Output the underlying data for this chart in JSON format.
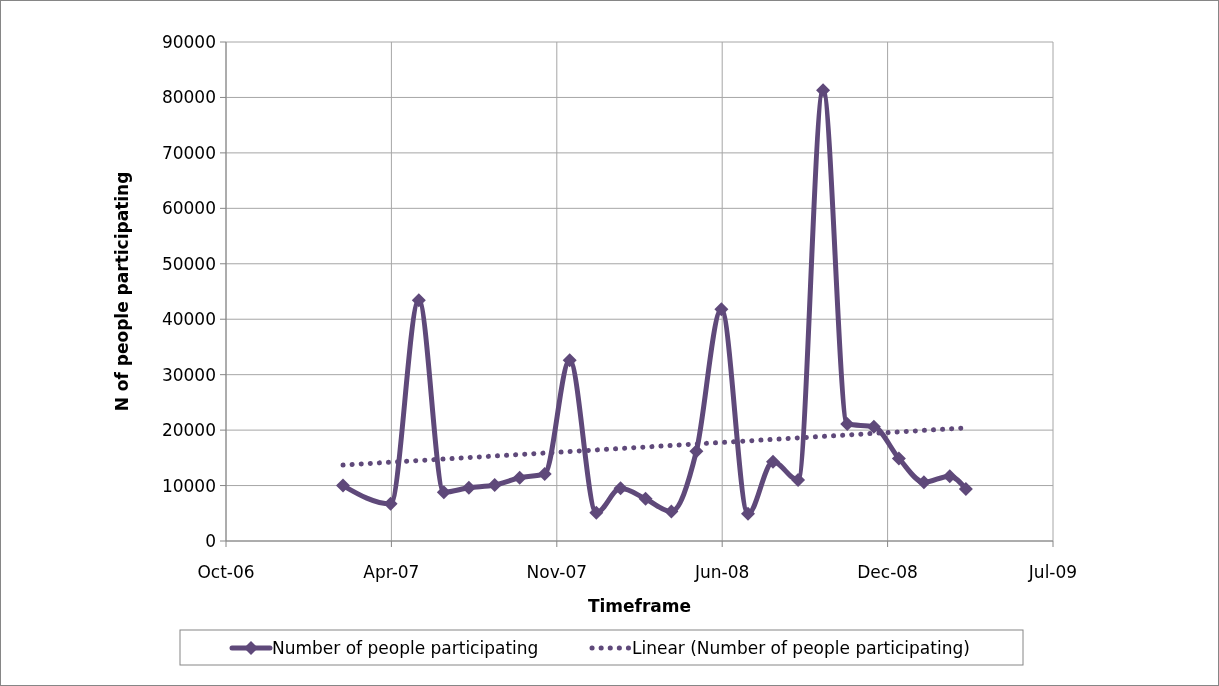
{
  "chart_data": {
    "type": "line",
    "xlabel": "Timeframe",
    "ylabel": "N of people participating",
    "xlim": [
      "2006-10-01",
      "2009-07-22"
    ],
    "xticks": [
      {
        "value": "2006-10-01",
        "label": "Oct-06"
      },
      {
        "value": "2007-04-24",
        "label": "Apr-07"
      },
      {
        "value": "2007-11-15",
        "label": "Nov-07"
      },
      {
        "value": "2008-06-07",
        "label": "Jun-08"
      },
      {
        "value": "2008-12-29",
        "label": "Dec-08"
      },
      {
        "value": "2009-07-22",
        "label": "Jul-09"
      }
    ],
    "ylim": [
      0,
      90000
    ],
    "yticks": [
      0,
      10000,
      20000,
      30000,
      40000,
      50000,
      60000,
      70000,
      80000,
      90000
    ],
    "grid": true,
    "legend": "bottom",
    "series": [
      {
        "name": "Number of people participating",
        "color": "#5f497a",
        "marker": "diamond",
        "line_style": "solid",
        "x": [
          "2007-02-23",
          "2007-04-23",
          "2007-05-28",
          "2007-06-28",
          "2007-07-29",
          "2007-08-30",
          "2007-09-30",
          "2007-10-31",
          "2007-12-01",
          "2008-01-03",
          "2008-02-02",
          "2008-03-04",
          "2008-04-05",
          "2008-05-06",
          "2008-06-06",
          "2008-07-09",
          "2008-08-09",
          "2008-09-09",
          "2008-10-10",
          "2008-11-09",
          "2008-12-12",
          "2009-01-12",
          "2009-02-12",
          "2009-03-16",
          "2009-04-05"
        ],
        "values": [
          10000,
          6700,
          43400,
          8800,
          9600,
          10100,
          11400,
          12100,
          32600,
          5100,
          9500,
          7600,
          5300,
          16200,
          41800,
          4900,
          14300,
          11000,
          81300,
          21100,
          20600,
          14900,
          10600,
          11700,
          9400
        ]
      },
      {
        "name": "Linear (Number of people participating)",
        "color": "#5f497a",
        "marker": "none",
        "line_style": "dotted",
        "x": [
          "2007-02-23",
          "2009-04-05"
        ],
        "values": [
          13700,
          20400
        ]
      }
    ]
  }
}
